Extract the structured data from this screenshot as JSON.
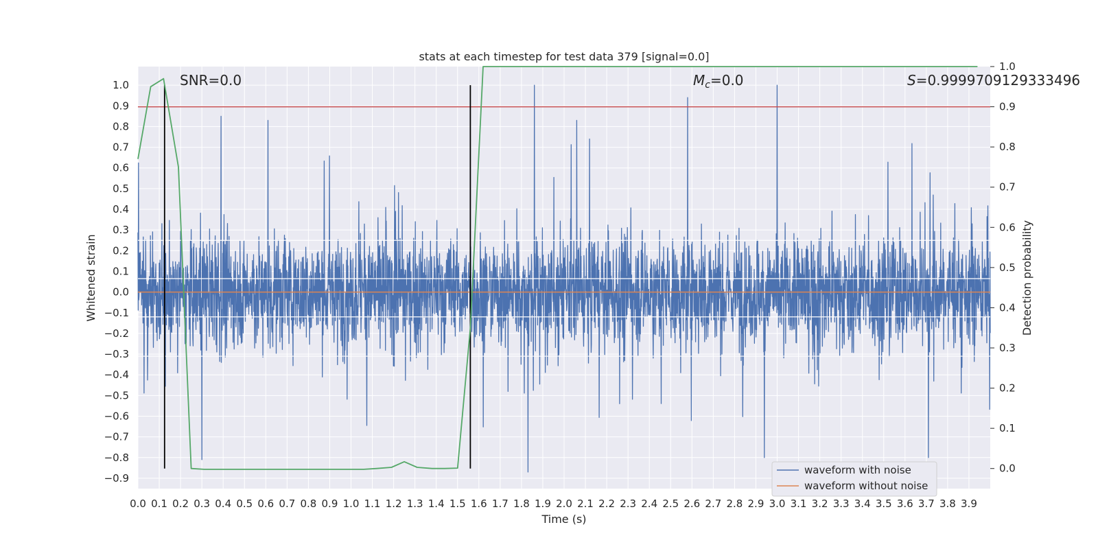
{
  "chart_data": {
    "type": "line",
    "title": "stats at each timestep for test data 379 [signal=0.0]",
    "xlabel": "Time (s)",
    "ylabel": "Whitened strain",
    "y2label": "Detection probability",
    "xlim": [
      0.0,
      4.0
    ],
    "ylim": [
      -0.95,
      1.09
    ],
    "y2lim": [
      -0.05,
      1.0
    ],
    "grid": true,
    "legend_position": "lower-right",
    "x_ticks": [
      0.0,
      0.1,
      0.2,
      0.3,
      0.4,
      0.5,
      0.6,
      0.7,
      0.8,
      0.9,
      1.0,
      1.1,
      1.2,
      1.3,
      1.4,
      1.5,
      1.6,
      1.7,
      1.8,
      1.9,
      2.0,
      2.1,
      2.2,
      2.3,
      2.4,
      2.5,
      2.6,
      2.7,
      2.8,
      2.9,
      3.0,
      3.1,
      3.2,
      3.3,
      3.4,
      3.5,
      3.6,
      3.7,
      3.8,
      3.9
    ],
    "x_tick_labels": [
      "0.0",
      "0.1",
      "0.2",
      "0.3",
      "0.4",
      "0.5",
      "0.6",
      "0.7",
      "0.8",
      "0.9",
      "1.0",
      "1.1",
      "1.2",
      "1.3",
      "1.4",
      "1.5",
      "1.6",
      "1.7",
      "1.8",
      "1.9",
      "2.0",
      "2.1",
      "2.2",
      "2.3",
      "2.4",
      "2.5",
      "2.6",
      "2.7",
      "2.8",
      "2.9",
      "3.0",
      "3.1",
      "3.2",
      "3.3",
      "3.4",
      "3.5",
      "3.6",
      "3.7",
      "3.8",
      "3.9"
    ],
    "y_ticks": [
      1.0,
      0.9,
      0.8,
      0.7,
      0.6,
      0.5,
      0.4,
      0.3,
      0.2,
      0.1,
      0.0,
      -0.1,
      -0.2,
      -0.3,
      -0.4,
      -0.5,
      -0.6,
      -0.7,
      -0.8,
      -0.9
    ],
    "y_tick_labels": [
      "1.0",
      "0.9",
      "0.8",
      "0.7",
      "0.6",
      "0.5",
      "0.4",
      "0.3",
      "0.2",
      "0.1",
      "0.0",
      "−0.1",
      "−0.2",
      "−0.3",
      "−0.4",
      "−0.5",
      "−0.6",
      "−0.7",
      "−0.8",
      "−0.9"
    ],
    "y2_ticks": [
      1.0,
      0.9,
      0.8,
      0.7,
      0.6,
      0.5,
      0.4,
      0.3,
      0.2,
      0.1,
      0.0
    ],
    "y2_tick_labels": [
      "1.0",
      "0.9",
      "0.8",
      "0.7",
      "0.6",
      "0.5",
      "0.4",
      "0.3",
      "0.2",
      "0.1",
      "0.0"
    ],
    "series": [
      {
        "name": "waveform with noise",
        "axis": "left",
        "color": "#4c72b0",
        "style": "dense noisy trace",
        "amplitude_range": [
          -0.87,
          1.0
        ],
        "peaks": [
          {
            "x": 1.86,
            "y": 1.0
          },
          {
            "x": 3.0,
            "y": 1.0
          },
          {
            "x": 2.58,
            "y": 0.94
          },
          {
            "x": 0.39,
            "y": 0.85
          },
          {
            "x": 2.06,
            "y": 0.83
          },
          {
            "x": 0.61,
            "y": 0.83
          },
          {
            "x": 1.83,
            "y": -0.87
          },
          {
            "x": 2.94,
            "y": -0.8
          },
          {
            "x": 3.71,
            "y": -0.8
          },
          {
            "x": 0.3,
            "y": -0.81
          }
        ]
      },
      {
        "name": "waveform without noise",
        "axis": "left",
        "color": "#dd8452",
        "x": [
          0.0,
          4.0
        ],
        "y": [
          0.0,
          0.0
        ]
      },
      {
        "name": "",
        "axis": "right",
        "color": "#55a868",
        "x": [
          0.0,
          0.06,
          0.12,
          0.19,
          0.25,
          0.31,
          0.38,
          0.44,
          0.5,
          0.56,
          0.62,
          0.69,
          0.75,
          0.81,
          0.88,
          0.94,
          1.0,
          1.06,
          1.12,
          1.19,
          1.25,
          1.31,
          1.38,
          1.44,
          1.5,
          1.56,
          1.62,
          1.69,
          1.75,
          1.81,
          1.88,
          1.94,
          2.0,
          3.94
        ],
        "y": [
          0.77,
          0.95,
          0.97,
          0.75,
          0.0,
          -0.002,
          -0.002,
          -0.002,
          -0.002,
          -0.002,
          -0.002,
          -0.002,
          -0.002,
          -0.002,
          -0.002,
          -0.002,
          -0.002,
          -0.002,
          0.0,
          0.003,
          0.017,
          0.003,
          0.0,
          0.0,
          0.001,
          0.35,
          1.0,
          1.0,
          1.0,
          1.0,
          1.0,
          1.0,
          1.0,
          1.0
        ]
      }
    ],
    "hlines": [
      {
        "axis": "right",
        "y": 0.9,
        "color": "#c44e52"
      }
    ],
    "vlines": [
      {
        "x": 0.125,
        "color": "#000000"
      },
      {
        "x": 1.56,
        "color": "#000000"
      }
    ],
    "annotations": [
      {
        "key": "snr",
        "text": "SNR=0.0"
      },
      {
        "key": "mc",
        "text_main": "M",
        "text_sub": "c",
        "text_rest": "=0.0"
      },
      {
        "key": "s",
        "text_main": "S",
        "text_rest": "=0.9999709129333496"
      }
    ],
    "legend": [
      {
        "label": "waveform with noise",
        "color": "#4c72b0"
      },
      {
        "label": "waveform without noise",
        "color": "#dd8452"
      }
    ]
  }
}
